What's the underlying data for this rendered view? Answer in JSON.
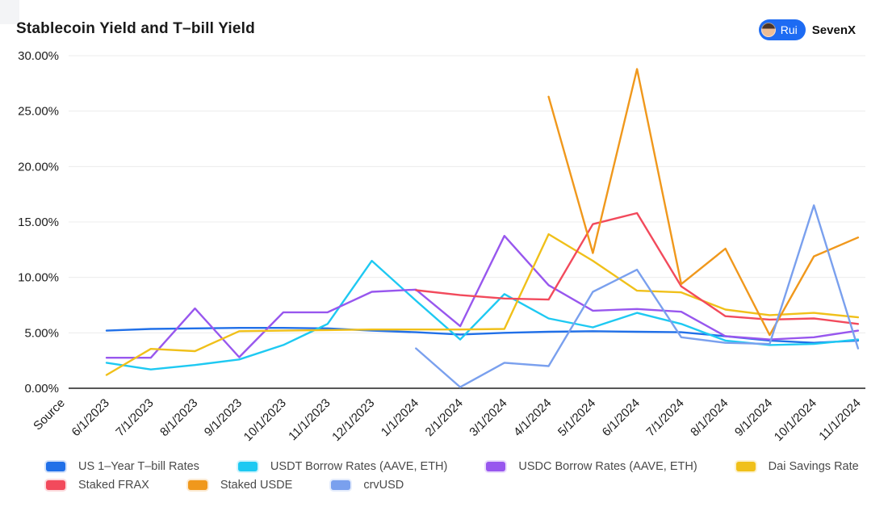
{
  "header": {
    "title": "Stablecoin Yield and T–bill Yield",
    "badge": {
      "handle": "Rui",
      "org": "SevenX"
    }
  },
  "colors": {
    "background": "#ffffff",
    "gridline": "#ececec",
    "axis_line": "#565656",
    "axis_label": "#1c1c1c",
    "legend_text": "#4a4a4a",
    "badge_pill": "#1d6bf3"
  },
  "chart_data": {
    "type": "line",
    "title": "Stablecoin Yield and T–bill Yield",
    "xlabel": "",
    "ylabel": "",
    "ylim": [
      0,
      30
    ],
    "ytick_step": 5,
    "ytick_labels": [
      "0.00%",
      "5.00%",
      "10.00%",
      "15.00%",
      "20.00%",
      "25.00%",
      "30.00%"
    ],
    "grid": true,
    "legend_position": "bottom",
    "categories": [
      "Source",
      "6/1/2023",
      "7/1/2023",
      "8/1/2023",
      "9/1/2023",
      "10/1/2023",
      "11/1/2023",
      "12/1/2023",
      "1/1/2024",
      "2/1/2024",
      "3/1/2024",
      "4/1/2024",
      "5/1/2024",
      "6/1/2024",
      "7/1/2024",
      "8/1/2024",
      "9/1/2024",
      "10/1/2024",
      "11/1/2024"
    ],
    "series": [
      {
        "name": "US 1–Year T–bill Rates",
        "color": "#2170e8",
        "values": [
          null,
          5.2,
          5.35,
          5.4,
          5.45,
          5.45,
          5.4,
          5.2,
          5.05,
          4.85,
          5.0,
          5.1,
          5.15,
          5.1,
          5.05,
          4.7,
          4.3,
          4.1,
          4.3
        ]
      },
      {
        "name": "USDT Borrow Rates (AAVE, ETH)",
        "color": "#1ec9f2",
        "values": [
          null,
          2.3,
          1.7,
          2.1,
          2.6,
          3.9,
          5.8,
          11.5,
          7.9,
          4.4,
          8.5,
          6.3,
          5.5,
          6.8,
          5.8,
          4.3,
          3.9,
          4.0,
          4.4
        ]
      },
      {
        "name": "USDC Borrow Rates (AAVE, ETH)",
        "color": "#9857ee",
        "values": [
          null,
          2.75,
          2.75,
          7.2,
          2.8,
          6.85,
          6.85,
          8.7,
          8.9,
          5.6,
          13.75,
          9.3,
          7.0,
          7.15,
          6.9,
          4.7,
          4.4,
          4.6,
          5.2
        ]
      },
      {
        "name": "Dai Savings Rate",
        "color": "#f0c01a",
        "values": [
          null,
          1.2,
          3.55,
          3.35,
          5.15,
          5.2,
          5.25,
          5.3,
          5.3,
          5.3,
          5.35,
          13.9,
          11.5,
          8.8,
          8.65,
          7.1,
          6.6,
          6.8,
          6.4
        ]
      },
      {
        "name": "Staked FRAX",
        "color": "#f24a5c",
        "values": [
          null,
          null,
          null,
          null,
          null,
          null,
          null,
          null,
          8.85,
          8.4,
          8.1,
          8.0,
          14.8,
          15.8,
          9.2,
          6.5,
          6.2,
          6.3,
          5.8
        ]
      },
      {
        "name": "Staked USDE",
        "color": "#f0981c",
        "values": [
          null,
          null,
          null,
          null,
          null,
          null,
          null,
          null,
          null,
          null,
          null,
          26.3,
          12.2,
          28.8,
          9.4,
          12.6,
          4.8,
          11.9,
          13.6
        ]
      },
      {
        "name": "crvUSD",
        "color": "#7aa0ee",
        "values": [
          null,
          null,
          null,
          null,
          null,
          null,
          null,
          null,
          3.6,
          0.1,
          2.3,
          2.0,
          8.7,
          10.7,
          4.6,
          4.1,
          4.0,
          16.5,
          3.6
        ]
      }
    ],
    "legend_rows": [
      [
        0,
        1,
        2,
        3
      ],
      [
        4,
        5,
        6
      ]
    ]
  }
}
